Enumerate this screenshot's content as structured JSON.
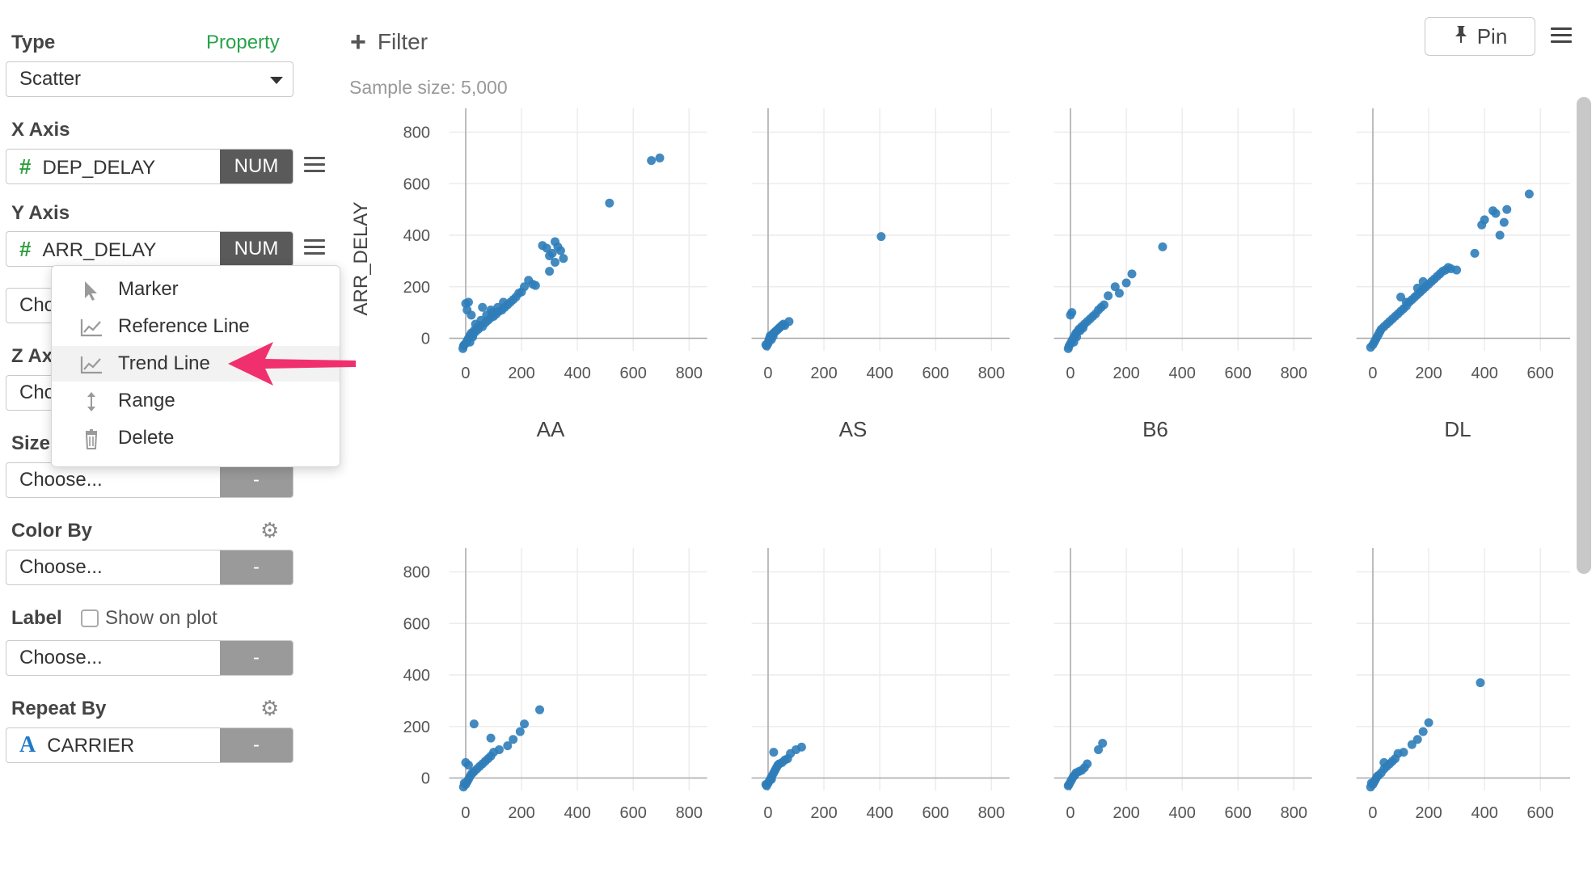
{
  "sidebar": {
    "type_label": "Type",
    "property_link": "Property",
    "type_value": "Scatter",
    "x_axis_label": "X Axis",
    "x_field": "DEP_DELAY",
    "x_type": "NUM",
    "y_axis_label": "Y Axis",
    "y_field": "ARR_DELAY",
    "y_type": "NUM",
    "choose_partial_1": "Cho",
    "z_axis_partial": "Z Ax",
    "choose_partial_2": "Cho",
    "size_label": "Size",
    "size_value": "Choose...",
    "size_type": "-",
    "color_by_label": "Color By",
    "color_by_value": "Choose...",
    "color_by_type": "-",
    "label_label": "Label",
    "show_on_plot": "Show on plot",
    "label_value": "Choose...",
    "label_type": "-",
    "repeat_by_label": "Repeat By",
    "repeat_by_value": "CARRIER",
    "repeat_by_type": "-"
  },
  "menu": {
    "items": [
      {
        "label": "Marker",
        "icon": "cursor-icon"
      },
      {
        "label": "Reference Line",
        "icon": "line-chart-icon"
      },
      {
        "label": "Trend Line",
        "icon": "line-chart-icon"
      },
      {
        "label": "Range",
        "icon": "vertical-range-icon"
      },
      {
        "label": "Delete",
        "icon": "trash-icon"
      }
    ]
  },
  "toolbar": {
    "filter_label": "Filter",
    "sample_size": "Sample size: 5,000",
    "pin_label": "Pin"
  },
  "colors": {
    "point": "#2f7db9",
    "accent_green": "#27a34a",
    "arrow": "#f0306e"
  },
  "chart_data": {
    "type": "scatter",
    "ylabel": "ARR_DELAY",
    "x_ticks": [
      "0",
      "200",
      "400",
      "600",
      "800"
    ],
    "y_ticks": [
      "0",
      "200",
      "400",
      "600",
      "800"
    ],
    "xlim": [
      -30,
      830
    ],
    "ylim": [
      -80,
      830
    ],
    "grid": true,
    "panels": [
      {
        "title": "AA",
        "points": [
          [
            -8,
            -30
          ],
          [
            0,
            -20
          ],
          [
            5,
            -10
          ],
          [
            10,
            0
          ],
          [
            15,
            10
          ],
          [
            20,
            20
          ],
          [
            25,
            5
          ],
          [
            30,
            30
          ],
          [
            35,
            25
          ],
          [
            40,
            40
          ],
          [
            45,
            35
          ],
          [
            50,
            50
          ],
          [
            60,
            45
          ],
          [
            70,
            60
          ],
          [
            80,
            70
          ],
          [
            90,
            80
          ],
          [
            100,
            85
          ],
          [
            110,
            95
          ],
          [
            120,
            105
          ],
          [
            130,
            110
          ],
          [
            140,
            120
          ],
          [
            150,
            130
          ],
          [
            160,
            140
          ],
          [
            170,
            150
          ],
          [
            180,
            160
          ],
          [
            190,
            175
          ],
          [
            200,
            180
          ],
          [
            210,
            200
          ],
          [
            225,
            225
          ],
          [
            240,
            210
          ],
          [
            250,
            205
          ],
          [
            275,
            360
          ],
          [
            290,
            350
          ],
          [
            300,
            320
          ],
          [
            310,
            330
          ],
          [
            320,
            375
          ],
          [
            330,
            355
          ],
          [
            340,
            340
          ],
          [
            350,
            310
          ],
          [
            320,
            295
          ],
          [
            300,
            260
          ],
          [
            515,
            525
          ],
          [
            665,
            690
          ],
          [
            695,
            700
          ],
          [
            0,
            135
          ],
          [
            10,
            140
          ],
          [
            5,
            110
          ],
          [
            20,
            90
          ],
          [
            60,
            120
          ],
          [
            90,
            110
          ],
          [
            -10,
            -40
          ],
          [
            -5,
            -25
          ],
          [
            15,
            -15
          ],
          [
            25,
            15
          ],
          [
            35,
            55
          ],
          [
            55,
            70
          ],
          [
            75,
            90
          ],
          [
            95,
            100
          ],
          [
            115,
            120
          ],
          [
            135,
            140
          ]
        ]
      },
      {
        "title": "AS",
        "points": [
          [
            -5,
            -30
          ],
          [
            0,
            -20
          ],
          [
            2,
            -10
          ],
          [
            5,
            0
          ],
          [
            8,
            10
          ],
          [
            10,
            5
          ],
          [
            15,
            15
          ],
          [
            20,
            20
          ],
          [
            25,
            25
          ],
          [
            30,
            30
          ],
          [
            35,
            35
          ],
          [
            40,
            40
          ],
          [
            45,
            45
          ],
          [
            50,
            50
          ],
          [
            55,
            55
          ],
          [
            60,
            50
          ],
          [
            75,
            65
          ],
          [
            405,
            395
          ],
          [
            -8,
            -25
          ],
          [
            12,
            -5
          ],
          [
            18,
            8
          ]
        ]
      },
      {
        "title": "B6",
        "points": [
          [
            -5,
            -30
          ],
          [
            0,
            -20
          ],
          [
            5,
            -10
          ],
          [
            10,
            0
          ],
          [
            15,
            10
          ],
          [
            20,
            20
          ],
          [
            25,
            25
          ],
          [
            30,
            35
          ],
          [
            35,
            30
          ],
          [
            40,
            45
          ],
          [
            50,
            55
          ],
          [
            60,
            65
          ],
          [
            70,
            75
          ],
          [
            80,
            85
          ],
          [
            90,
            95
          ],
          [
            100,
            110
          ],
          [
            110,
            120
          ],
          [
            120,
            130
          ],
          [
            135,
            165
          ],
          [
            160,
            200
          ],
          [
            175,
            175
          ],
          [
            200,
            215
          ],
          [
            220,
            250
          ],
          [
            330,
            355
          ],
          [
            5,
            100
          ],
          [
            0,
            90
          ],
          [
            -8,
            -40
          ],
          [
            12,
            -15
          ],
          [
            22,
            5
          ],
          [
            45,
            40
          ]
        ]
      },
      {
        "title": "DL",
        "points": [
          [
            -8,
            -35
          ],
          [
            0,
            -25
          ],
          [
            5,
            -15
          ],
          [
            10,
            -5
          ],
          [
            15,
            5
          ],
          [
            20,
            15
          ],
          [
            25,
            25
          ],
          [
            30,
            35
          ],
          [
            40,
            45
          ],
          [
            50,
            55
          ],
          [
            60,
            65
          ],
          [
            70,
            75
          ],
          [
            80,
            85
          ],
          [
            90,
            95
          ],
          [
            100,
            105
          ],
          [
            110,
            115
          ],
          [
            120,
            125
          ],
          [
            130,
            140
          ],
          [
            140,
            150
          ],
          [
            150,
            160
          ],
          [
            160,
            170
          ],
          [
            170,
            180
          ],
          [
            180,
            190
          ],
          [
            190,
            200
          ],
          [
            200,
            210
          ],
          [
            210,
            220
          ],
          [
            220,
            230
          ],
          [
            230,
            240
          ],
          [
            240,
            250
          ],
          [
            250,
            260
          ],
          [
            260,
            265
          ],
          [
            270,
            275
          ],
          [
            280,
            270
          ],
          [
            300,
            265
          ],
          [
            365,
            330
          ],
          [
            390,
            440
          ],
          [
            400,
            460
          ],
          [
            430,
            495
          ],
          [
            440,
            485
          ],
          [
            455,
            400
          ],
          [
            470,
            450
          ],
          [
            480,
            500
          ],
          [
            560,
            560
          ],
          [
            160,
            195
          ],
          [
            180,
            220
          ],
          [
            100,
            160
          ],
          [
            120,
            140
          ]
        ]
      },
      {
        "title": "",
        "points": [
          [
            -8,
            -35
          ],
          [
            0,
            -25
          ],
          [
            5,
            -15
          ],
          [
            10,
            -5
          ],
          [
            15,
            5
          ],
          [
            20,
            15
          ],
          [
            25,
            20
          ],
          [
            30,
            25
          ],
          [
            40,
            35
          ],
          [
            50,
            45
          ],
          [
            60,
            55
          ],
          [
            70,
            65
          ],
          [
            80,
            75
          ],
          [
            90,
            85
          ],
          [
            100,
            100
          ],
          [
            120,
            110
          ],
          [
            150,
            125
          ],
          [
            170,
            150
          ],
          [
            195,
            180
          ],
          [
            210,
            210
          ],
          [
            265,
            265
          ],
          [
            30,
            210
          ],
          [
            90,
            155
          ],
          [
            0,
            60
          ],
          [
            10,
            50
          ],
          [
            -5,
            -20
          ]
        ]
      },
      {
        "title": "",
        "points": [
          [
            -5,
            -30
          ],
          [
            0,
            -20
          ],
          [
            5,
            -10
          ],
          [
            10,
            0
          ],
          [
            15,
            10
          ],
          [
            20,
            20
          ],
          [
            25,
            30
          ],
          [
            30,
            40
          ],
          [
            35,
            50
          ],
          [
            40,
            55
          ],
          [
            50,
            60
          ],
          [
            60,
            70
          ],
          [
            70,
            75
          ],
          [
            80,
            95
          ],
          [
            100,
            110
          ],
          [
            120,
            120
          ],
          [
            20,
            100
          ],
          [
            -8,
            -25
          ],
          [
            12,
            -5
          ]
        ]
      },
      {
        "title": "",
        "points": [
          [
            -5,
            -25
          ],
          [
            0,
            -15
          ],
          [
            5,
            -5
          ],
          [
            10,
            5
          ],
          [
            15,
            10
          ],
          [
            20,
            20
          ],
          [
            30,
            25
          ],
          [
            40,
            30
          ],
          [
            50,
            40
          ],
          [
            60,
            55
          ],
          [
            100,
            110
          ],
          [
            115,
            135
          ],
          [
            -8,
            -30
          ]
        ]
      },
      {
        "title": "",
        "points": [
          [
            -8,
            -35
          ],
          [
            0,
            -25
          ],
          [
            5,
            -15
          ],
          [
            10,
            -5
          ],
          [
            15,
            5
          ],
          [
            20,
            10
          ],
          [
            30,
            20
          ],
          [
            40,
            35
          ],
          [
            50,
            45
          ],
          [
            60,
            55
          ],
          [
            70,
            65
          ],
          [
            80,
            75
          ],
          [
            90,
            95
          ],
          [
            110,
            100
          ],
          [
            140,
            130
          ],
          [
            160,
            150
          ],
          [
            180,
            180
          ],
          [
            200,
            215
          ],
          [
            385,
            370
          ],
          [
            40,
            60
          ],
          [
            -5,
            -20
          ]
        ]
      }
    ]
  }
}
